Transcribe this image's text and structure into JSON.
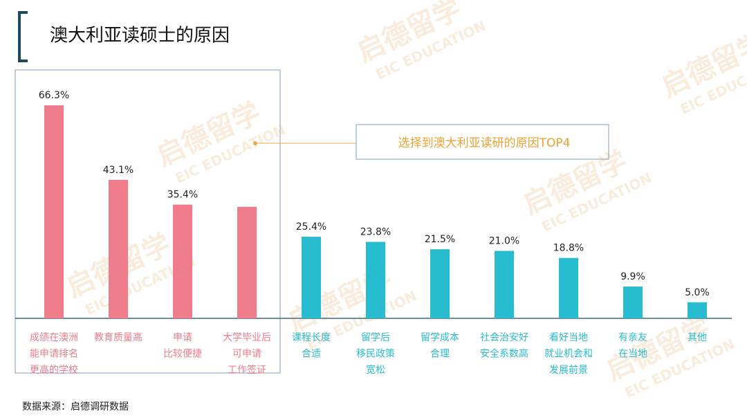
{
  "chart_data": {
    "type": "bar",
    "title": "澳大利亚读硕士的原因",
    "annotation": "选择到澳大利亚读研的原因TOP4",
    "source": "数据来源：启德调研数据",
    "watermark": [
      "启德留学",
      "EIC EDUCATION"
    ],
    "categories": [
      [
        "成绩在澳洲",
        "能申请排名",
        "更高的学校"
      ],
      [
        "教育质量高"
      ],
      [
        "申请",
        "比较便捷"
      ],
      [
        "大学毕业后",
        "可申请",
        "工作签证"
      ],
      [
        "课程长度",
        "合适"
      ],
      [
        "留学后",
        "移民政策",
        "宽松"
      ],
      [
        "留学成本",
        "合理"
      ],
      [
        "社会治安好",
        "安全系数高"
      ],
      [
        "看好当地",
        "就业机会和",
        "发展前景"
      ],
      [
        "有亲友",
        "在当地"
      ],
      [
        "其他"
      ]
    ],
    "values": [
      66.3,
      43.1,
      35.4,
      34.7,
      25.4,
      23.8,
      21.5,
      21.0,
      18.8,
      9.9,
      5.0
    ],
    "value_labels": [
      "66.3%",
      "43.1%",
      "35.4%",
      null,
      "25.4%",
      "23.8%",
      "21.5%",
      "21.0%",
      "18.8%",
      "9.9%",
      "5.0%"
    ],
    "colors": [
      "#f07b8b",
      "#f07b8b",
      "#f07b8b",
      "#f07b8b",
      "#27bccf",
      "#27bccf",
      "#27bccf",
      "#27bccf",
      "#27bccf",
      "#27bccf",
      "#27bccf"
    ],
    "ylim": [
      0,
      70
    ]
  }
}
